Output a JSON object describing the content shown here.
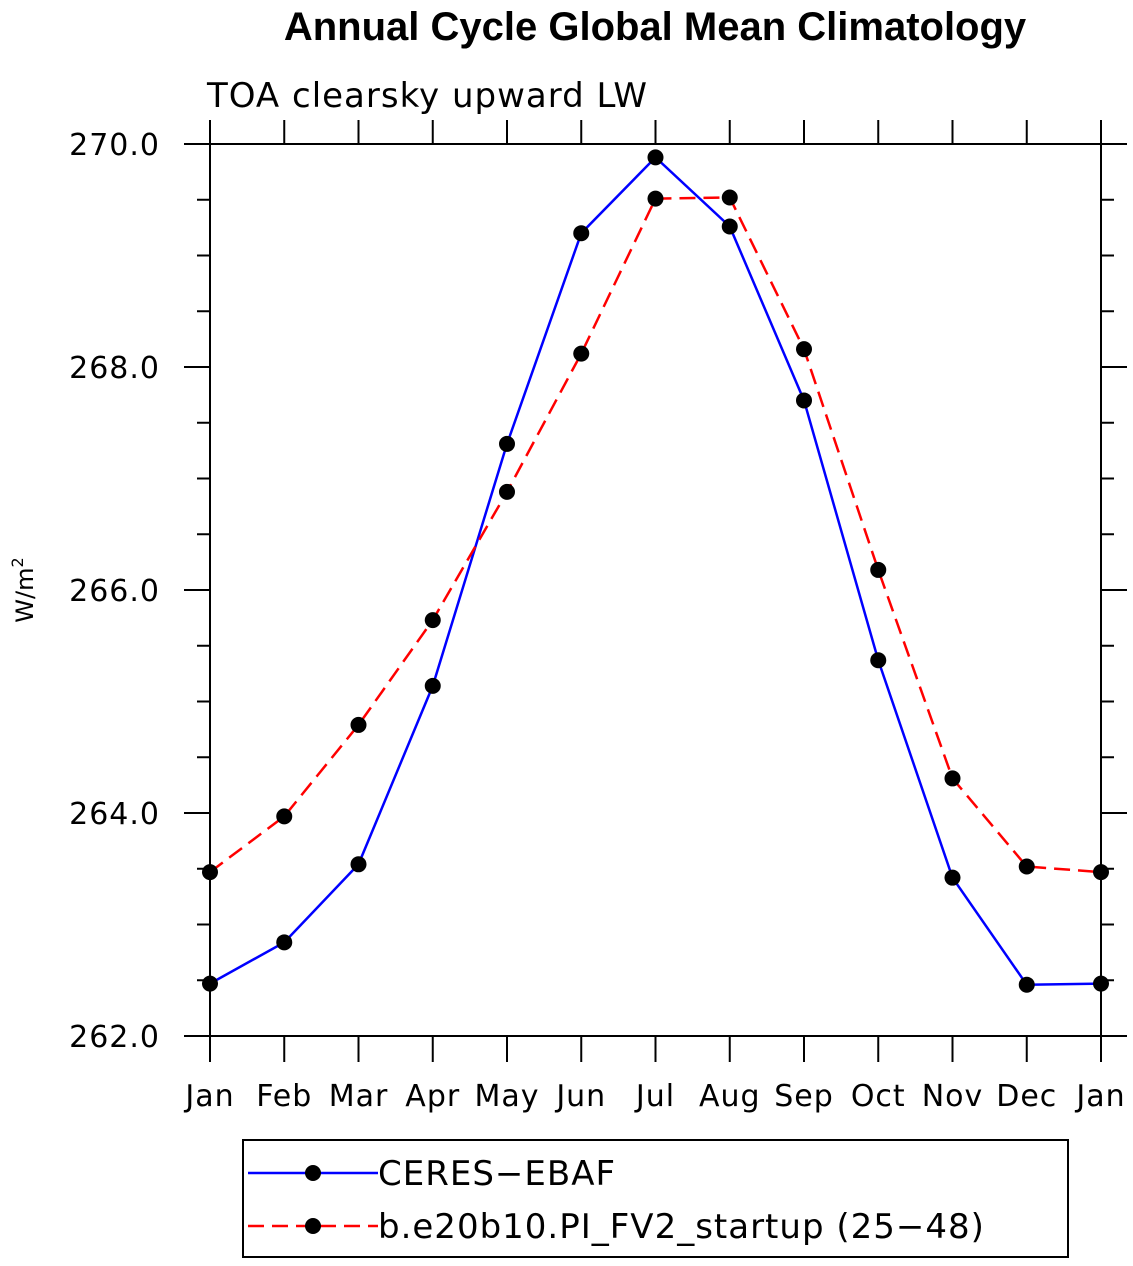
{
  "chart_data": {
    "type": "line",
    "title": "Annual Cycle Global Mean Climatology",
    "subtitle": "TOA clearsky upward LW",
    "ylabel": "W/m",
    "ylabel_superscript": "2",
    "xlabel": "",
    "categories": [
      "Jan",
      "Feb",
      "Mar",
      "Apr",
      "May",
      "Jun",
      "Jul",
      "Aug",
      "Sep",
      "Oct",
      "Nov",
      "Dec",
      "Jan"
    ],
    "ylim": [
      262.0,
      270.0
    ],
    "yticks": [
      "262.0",
      "264.0",
      "266.0",
      "268.0",
      "270.0"
    ],
    "yticks_values": [
      262.0,
      264.0,
      266.0,
      268.0,
      270.0
    ],
    "grid": false,
    "legend_position": "bottom",
    "series": [
      {
        "name": "CERES−EBAF",
        "color": "#0000ff",
        "dash": "solid",
        "marker": "filled-circle",
        "values": [
          262.47,
          262.84,
          263.54,
          265.14,
          267.31,
          269.2,
          269.88,
          269.26,
          267.7,
          265.37,
          263.42,
          262.46,
          262.47
        ]
      },
      {
        "name": "b.e20b10.PI_FV2_startup (25−48)",
        "color": "#ff0000",
        "dash": "dashed",
        "marker": "filled-circle",
        "values": [
          263.47,
          263.97,
          264.79,
          265.73,
          266.88,
          268.12,
          269.51,
          269.52,
          268.16,
          266.18,
          264.31,
          263.52,
          263.47
        ]
      }
    ]
  }
}
